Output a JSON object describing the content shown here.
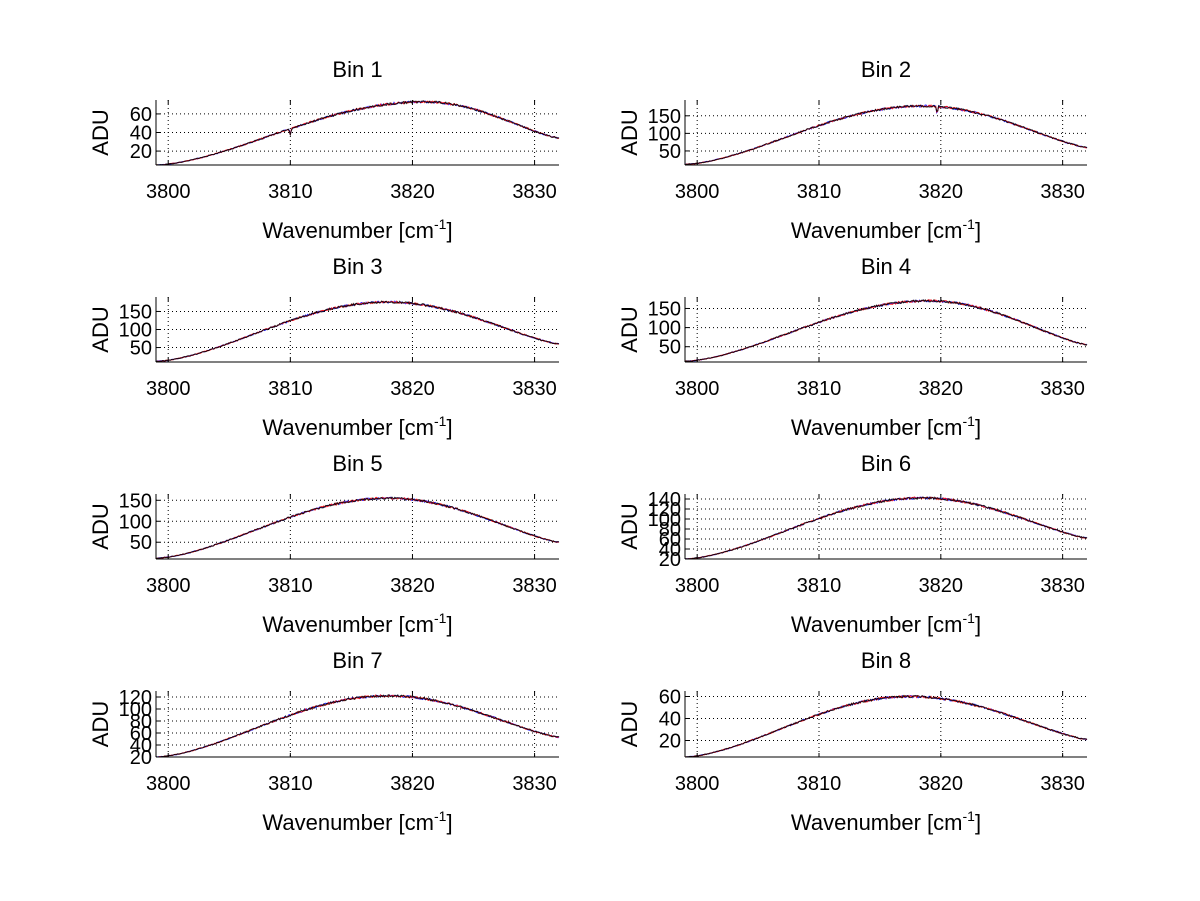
{
  "chart_data": [
    {
      "type": "line",
      "title": "Bin 1",
      "xlabel": "Wavenumber [cm",
      "xlabel_superscript": "-1",
      "xlabel_suffix": "]",
      "ylabel": "ADU",
      "xlim": [
        3799,
        3832
      ],
      "ylim": [
        5,
        75
      ],
      "xticks": [
        3800,
        3810,
        3820,
        3830
      ],
      "yticks": [
        20,
        40,
        60
      ],
      "grid": true,
      "peak_x": 3821,
      "peak_y": 73,
      "left_y": 5,
      "right_y": 34,
      "dip_x": 3810,
      "dip_depth": 6
    },
    {
      "type": "line",
      "title": "Bin 2",
      "xlabel": "Wavenumber [cm",
      "xlabel_superscript": "-1",
      "xlabel_suffix": "]",
      "ylabel": "ADU",
      "xlim": [
        3799,
        3832
      ],
      "ylim": [
        10,
        195
      ],
      "xticks": [
        3800,
        3810,
        3820,
        3830
      ],
      "yticks": [
        50,
        100,
        150
      ],
      "grid": true,
      "peak_x": 3818.5,
      "peak_y": 178,
      "left_y": 12,
      "right_y": 60,
      "dip_x": 3819.7,
      "dip_depth": 22
    },
    {
      "type": "line",
      "title": "Bin 3",
      "xlabel": "Wavenumber [cm",
      "xlabel_superscript": "-1",
      "xlabel_suffix": "]",
      "ylabel": "ADU",
      "xlim": [
        3799,
        3832
      ],
      "ylim": [
        10,
        190
      ],
      "xticks": [
        3800,
        3810,
        3820,
        3830
      ],
      "yticks": [
        50,
        100,
        150
      ],
      "grid": true,
      "peak_x": 3818,
      "peak_y": 176,
      "left_y": 12,
      "right_y": 60,
      "dip_x": null,
      "dip_depth": 0
    },
    {
      "type": "line",
      "title": "Bin 4",
      "xlabel": "Wavenumber [cm",
      "xlabel_superscript": "-1",
      "xlabel_suffix": "]",
      "ylabel": "ADU",
      "xlim": [
        3799,
        3832
      ],
      "ylim": [
        10,
        180
      ],
      "xticks": [
        3800,
        3810,
        3820,
        3830
      ],
      "yticks": [
        50,
        100,
        150
      ],
      "grid": true,
      "peak_x": 3819,
      "peak_y": 170,
      "left_y": 12,
      "right_y": 55,
      "dip_x": null,
      "dip_depth": 0
    },
    {
      "type": "line",
      "title": "Bin 5",
      "xlabel": "Wavenumber [cm",
      "xlabel_superscript": "-1",
      "xlabel_suffix": "]",
      "ylabel": "ADU",
      "xlim": [
        3799,
        3832
      ],
      "ylim": [
        10,
        165
      ],
      "xticks": [
        3800,
        3810,
        3820,
        3830
      ],
      "yticks": [
        50,
        100,
        150
      ],
      "grid": true,
      "peak_x": 3818,
      "peak_y": 155,
      "left_y": 12,
      "right_y": 50,
      "dip_x": null,
      "dip_depth": 0
    },
    {
      "type": "line",
      "title": "Bin 6",
      "xlabel": "Wavenumber [cm",
      "xlabel_superscript": "-1",
      "xlabel_suffix": "]",
      "ylabel": "ADU",
      "xlim": [
        3799,
        3832
      ],
      "ylim": [
        20,
        150
      ],
      "xticks": [
        3800,
        3810,
        3820,
        3830
      ],
      "yticks": [
        20,
        40,
        60,
        80,
        100,
        120,
        140
      ],
      "grid": true,
      "peak_x": 3818.5,
      "peak_y": 142,
      "left_y": 20,
      "right_y": 62,
      "dip_x": null,
      "dip_depth": 0
    },
    {
      "type": "line",
      "title": "Bin 7",
      "xlabel": "Wavenumber [cm",
      "xlabel_superscript": "-1",
      "xlabel_suffix": "]",
      "ylabel": "ADU",
      "xlim": [
        3799,
        3832
      ],
      "ylim": [
        20,
        130
      ],
      "xticks": [
        3800,
        3810,
        3820,
        3830
      ],
      "yticks": [
        20,
        40,
        60,
        80,
        100,
        120
      ],
      "grid": true,
      "peak_x": 3818,
      "peak_y": 122,
      "left_y": 20,
      "right_y": 53,
      "dip_x": null,
      "dip_depth": 0
    },
    {
      "type": "line",
      "title": "Bin 8",
      "xlabel": "Wavenumber [cm",
      "xlabel_superscript": "-1",
      "xlabel_suffix": "]",
      "ylabel": "ADU",
      "xlim": [
        3799,
        3832
      ],
      "ylim": [
        5,
        65
      ],
      "xticks": [
        3800,
        3810,
        3820,
        3830
      ],
      "yticks": [
        20,
        40,
        60
      ],
      "grid": true,
      "peak_x": 3817.5,
      "peak_y": 60,
      "left_y": 5,
      "right_y": 21,
      "dip_x": null,
      "dip_depth": 0
    }
  ],
  "colors": {
    "series_a": "#0000ff",
    "series_b": "#ff0000",
    "series_c": "#000000",
    "axis": "#000000",
    "grid": "#000000"
  }
}
